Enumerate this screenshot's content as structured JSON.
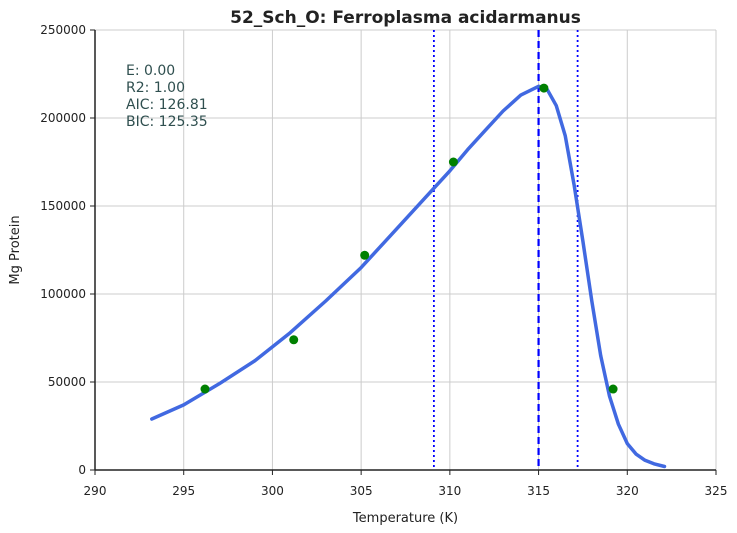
{
  "chart_data": {
    "type": "line",
    "title": "52_Sch_O: Ferroplasma acidarmanus",
    "xlabel": "Temperature (K)",
    "ylabel": "Mg Protein",
    "xlim": [
      290,
      325
    ],
    "ylim": [
      0,
      250000
    ],
    "x_ticks": [
      "290",
      "295",
      "300",
      "305",
      "310",
      "315",
      "320",
      "325"
    ],
    "y_ticks": [
      "0",
      "50000",
      "100000",
      "150000",
      "200000",
      "250000"
    ],
    "grid": true,
    "stats": [
      "E:  0.00",
      "R2:  1.00",
      "AIC: 126.81",
      "BIC: 125.35"
    ],
    "points": {
      "color": "#008000",
      "x": [
        296.2,
        301.2,
        305.2,
        310.2,
        315.3,
        319.2
      ],
      "y": [
        46000,
        74000,
        122000,
        175000,
        217000,
        46000
      ]
    },
    "fit_curve": {
      "color": "#4169e1",
      "x": [
        293.2,
        295,
        297,
        299,
        301,
        303,
        305,
        307,
        309,
        310,
        311,
        312,
        313,
        314,
        315,
        315.5,
        316,
        316.5,
        317,
        317.5,
        318,
        318.5,
        319,
        319.5,
        320,
        320.5,
        321,
        321.5,
        322.1
      ],
      "y": [
        29000,
        37000,
        49000,
        62000,
        78000,
        96000,
        115000,
        137000,
        159000,
        170000,
        182000,
        193000,
        204000,
        213000,
        218000,
        216000,
        207000,
        190000,
        162000,
        130000,
        96000,
        65000,
        42000,
        26000,
        15000,
        9000,
        5500,
        3500,
        2000
      ]
    },
    "vlines": [
      {
        "x": 315.0,
        "style": "dashed",
        "color": "#0000ff"
      },
      {
        "x": 309.1,
        "style": "dotted",
        "color": "#0000ff"
      },
      {
        "x": 317.2,
        "style": "dotted",
        "color": "#0000ff"
      }
    ]
  }
}
